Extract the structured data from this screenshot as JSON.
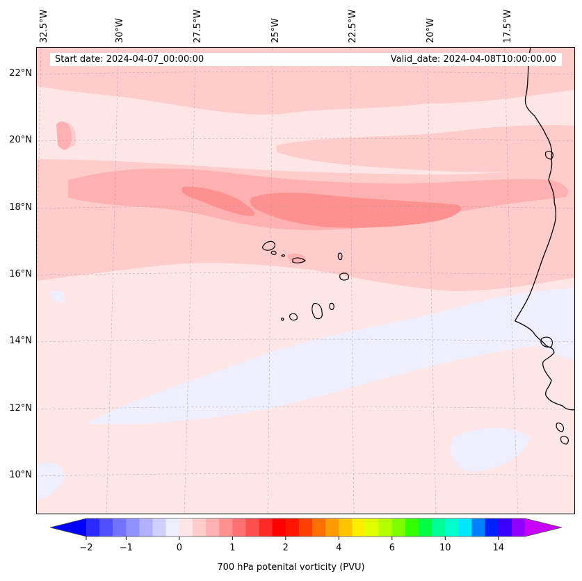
{
  "map": {
    "title_left": "Start date: 2024-04-07_00:00:00",
    "title_right": "Valid_date: 2024-04-08T10:00:00.00",
    "lon_labels": [
      "32.5°W",
      "30°W",
      "27.5°W",
      "25°W",
      "22.5°W",
      "20°W",
      "17.5°W"
    ],
    "lat_labels": [
      "22°N",
      "20°N",
      "18°N",
      "16°N",
      "14°N",
      "12°N",
      "10°N"
    ],
    "extent": {
      "lon_min": -33.2,
      "lon_max": -16.2,
      "lat_min": 8.9,
      "lat_max": 22.8
    }
  },
  "colorbar": {
    "label": "700 hPa potenital vorticity (PVU)",
    "tick_labels": [
      "−2",
      "−1",
      "0",
      "1",
      "2",
      "4",
      "6",
      "10",
      "14"
    ],
    "colors": [
      "#0000ff",
      "#2a2aff",
      "#5050ff",
      "#7373ff",
      "#9090ff",
      "#b0b0ff",
      "#d0d0ff",
      "#eeeeff",
      "#ffe6e6",
      "#ffcccc",
      "#ffb0b0",
      "#ff9090",
      "#ff7070",
      "#ff5050",
      "#ff2a2a",
      "#ff0000",
      "#ff1500",
      "#ff4000",
      "#ff7000",
      "#ff9a00",
      "#ffc400",
      "#ffee00",
      "#e0ff00",
      "#b4ff00",
      "#7eff00",
      "#33ff00",
      "#00ff40",
      "#00ff99",
      "#00ffcc",
      "#00e6ff",
      "#0080ff",
      "#0020ff",
      "#3a00ff",
      "#9000ff",
      "#c800ff"
    ],
    "levels_colors": {
      "c_neg": "#eeeeff",
      "c0": "#ffe6e6",
      "c1": "#ffcccc",
      "c2": "#ffb0b0",
      "c3": "#ff9090"
    }
  }
}
